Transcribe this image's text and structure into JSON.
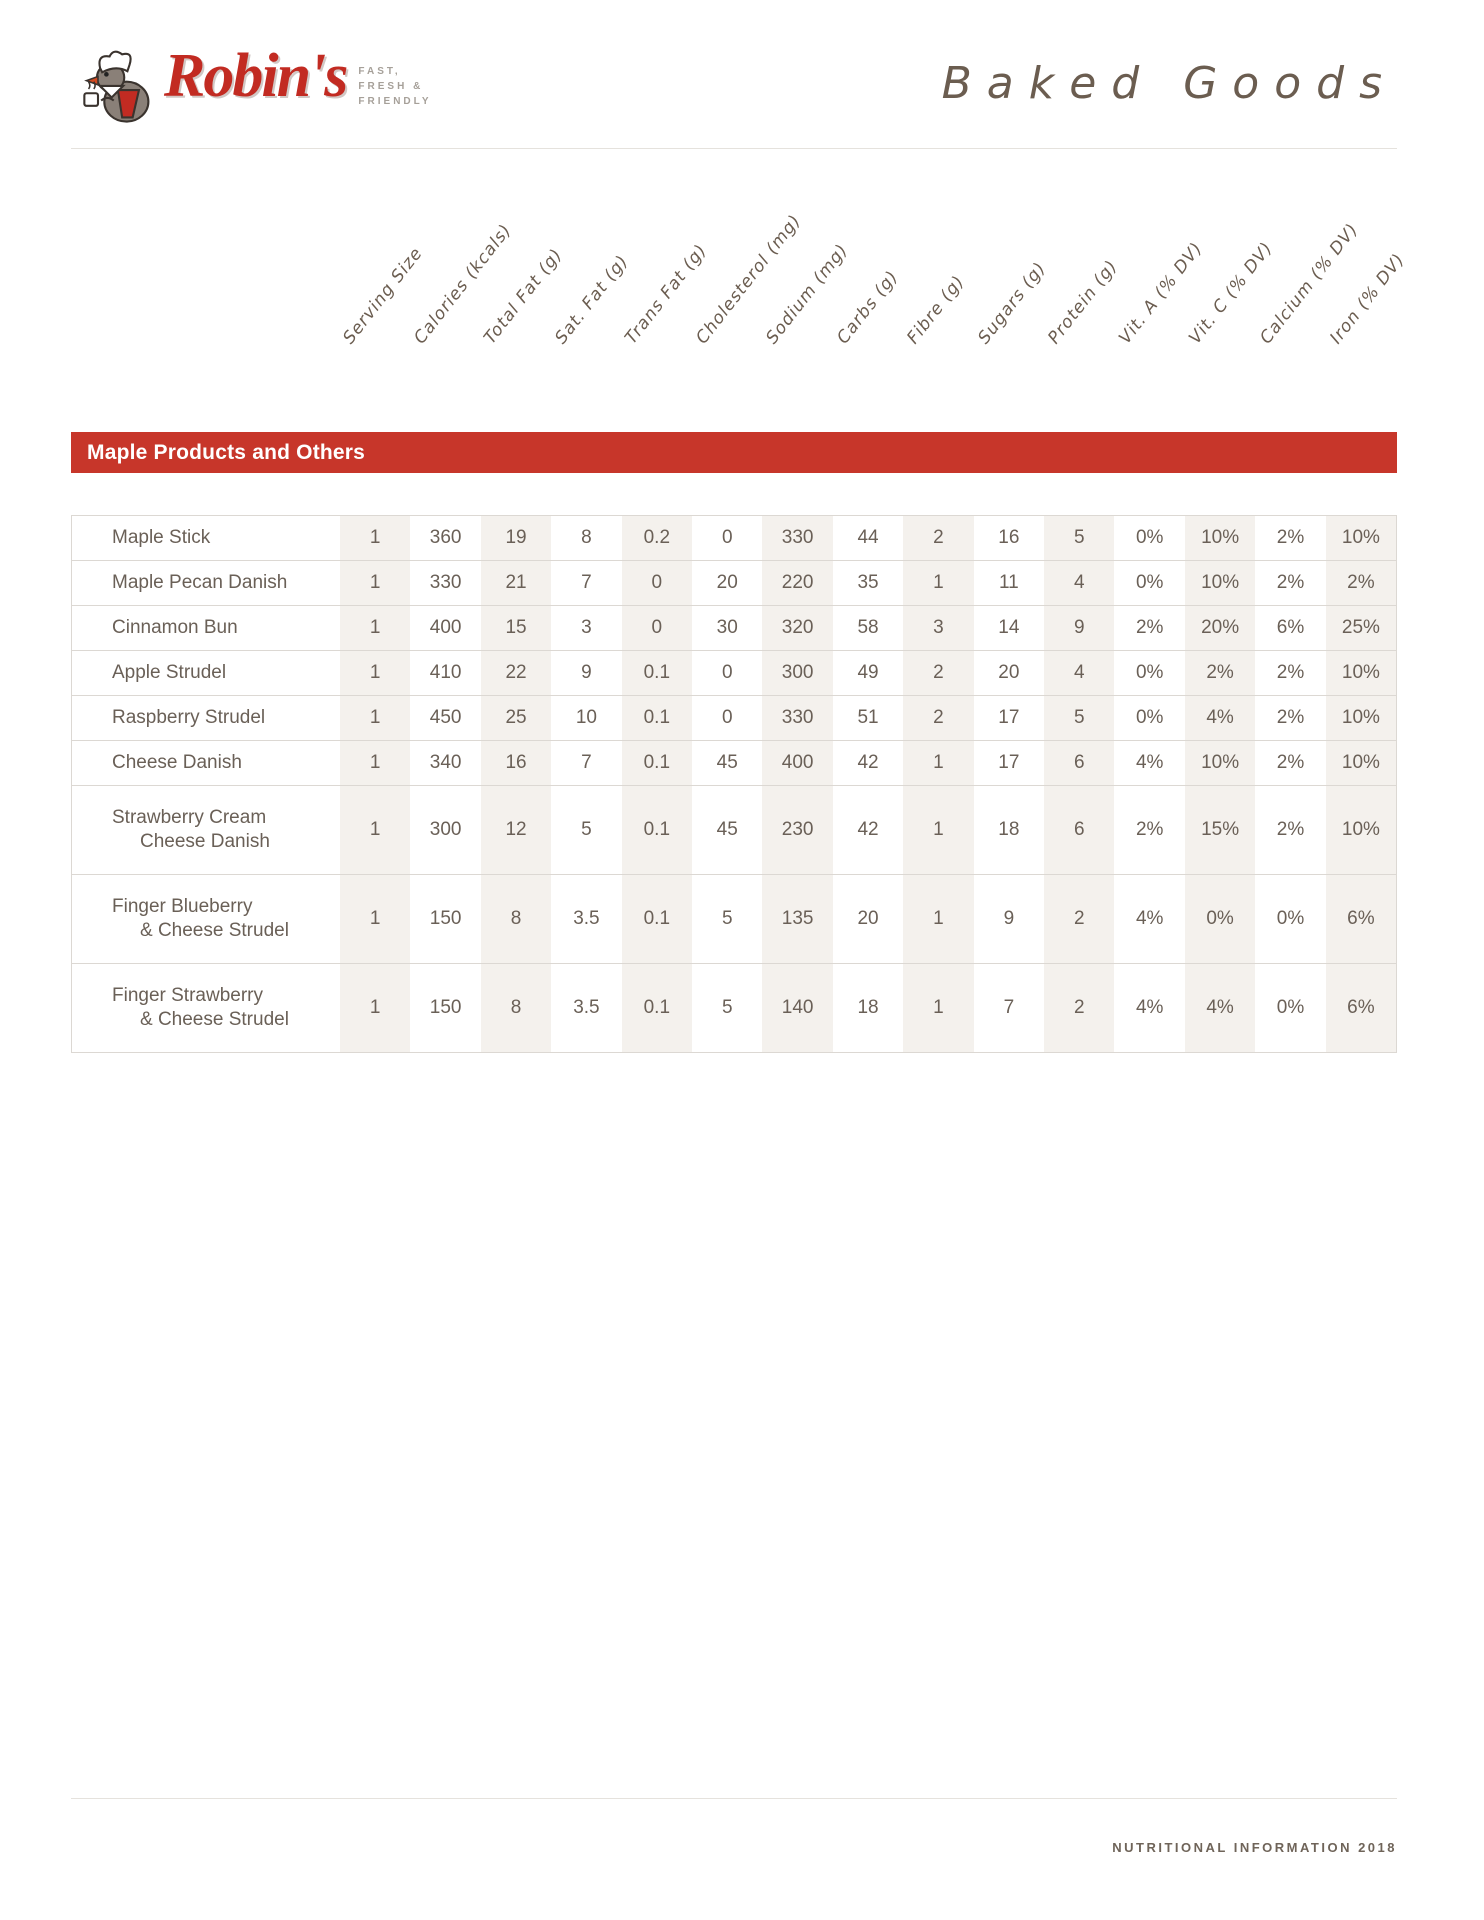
{
  "header": {
    "brand": "Robin's",
    "tagline_lines": [
      "FAST,",
      "FRESH &",
      "FRIENDLY"
    ],
    "page_title": "Baked Goods"
  },
  "colors": {
    "accent_red": "#c7362a",
    "brand_red": "#c22b22",
    "text_brown": "#6a6057",
    "hand_brown": "#6b5d50",
    "column_shade": "#f4f1ed"
  },
  "section": {
    "title": "Maple Products and Others"
  },
  "table": {
    "columns": [
      "Serving Size",
      "Calories (kcals)",
      "Total Fat (g)",
      "Sat. Fat (g)",
      "Trans Fat (g)",
      "Cholesterol (mg)",
      "Sodium (mg)",
      "Carbs (g)",
      "Fibre (g)",
      "Sugars (g)",
      "Protein (g)",
      "Vit. A (% DV)",
      "Vit. C (% DV)",
      "Calcium (% DV)",
      "Iron (% DV)"
    ],
    "rows": [
      {
        "name": [
          "Maple Stick"
        ],
        "values": [
          "1",
          "360",
          "19",
          "8",
          "0.2",
          "0",
          "330",
          "44",
          "2",
          "16",
          "5",
          "0%",
          "10%",
          "2%",
          "10%"
        ]
      },
      {
        "name": [
          "Maple Pecan Danish"
        ],
        "values": [
          "1",
          "330",
          "21",
          "7",
          "0",
          "20",
          "220",
          "35",
          "1",
          "11",
          "4",
          "0%",
          "10%",
          "2%",
          "2%"
        ]
      },
      {
        "name": [
          "Cinnamon Bun"
        ],
        "values": [
          "1",
          "400",
          "15",
          "3",
          "0",
          "30",
          "320",
          "58",
          "3",
          "14",
          "9",
          "2%",
          "20%",
          "6%",
          "25%"
        ]
      },
      {
        "name": [
          "Apple Strudel"
        ],
        "values": [
          "1",
          "410",
          "22",
          "9",
          "0.1",
          "0",
          "300",
          "49",
          "2",
          "20",
          "4",
          "0%",
          "2%",
          "2%",
          "10%"
        ]
      },
      {
        "name": [
          "Raspberry Strudel"
        ],
        "values": [
          "1",
          "450",
          "25",
          "10",
          "0.1",
          "0",
          "330",
          "51",
          "2",
          "17",
          "5",
          "0%",
          "4%",
          "2%",
          "10%"
        ]
      },
      {
        "name": [
          "Cheese Danish"
        ],
        "values": [
          "1",
          "340",
          "16",
          "7",
          "0.1",
          "45",
          "400",
          "42",
          "1",
          "17",
          "6",
          "4%",
          "10%",
          "2%",
          "10%"
        ]
      },
      {
        "name": [
          "Strawberry Cream",
          "Cheese Danish"
        ],
        "values": [
          "1",
          "300",
          "12",
          "5",
          "0.1",
          "45",
          "230",
          "42",
          "1",
          "18",
          "6",
          "2%",
          "15%",
          "2%",
          "10%"
        ]
      },
      {
        "name": [
          "Finger Blueberry",
          "& Cheese Strudel"
        ],
        "values": [
          "1",
          "150",
          "8",
          "3.5",
          "0.1",
          "5",
          "135",
          "20",
          "1",
          "9",
          "2",
          "4%",
          "0%",
          "0%",
          "6%"
        ]
      },
      {
        "name": [
          "Finger Strawberry",
          "& Cheese Strudel"
        ],
        "values": [
          "1",
          "150",
          "8",
          "3.5",
          "0.1",
          "5",
          "140",
          "18",
          "1",
          "7",
          "2",
          "4%",
          "4%",
          "0%",
          "6%"
        ]
      }
    ]
  },
  "footer": {
    "text": "NUTRITIONAL INFORMATION 2018"
  }
}
